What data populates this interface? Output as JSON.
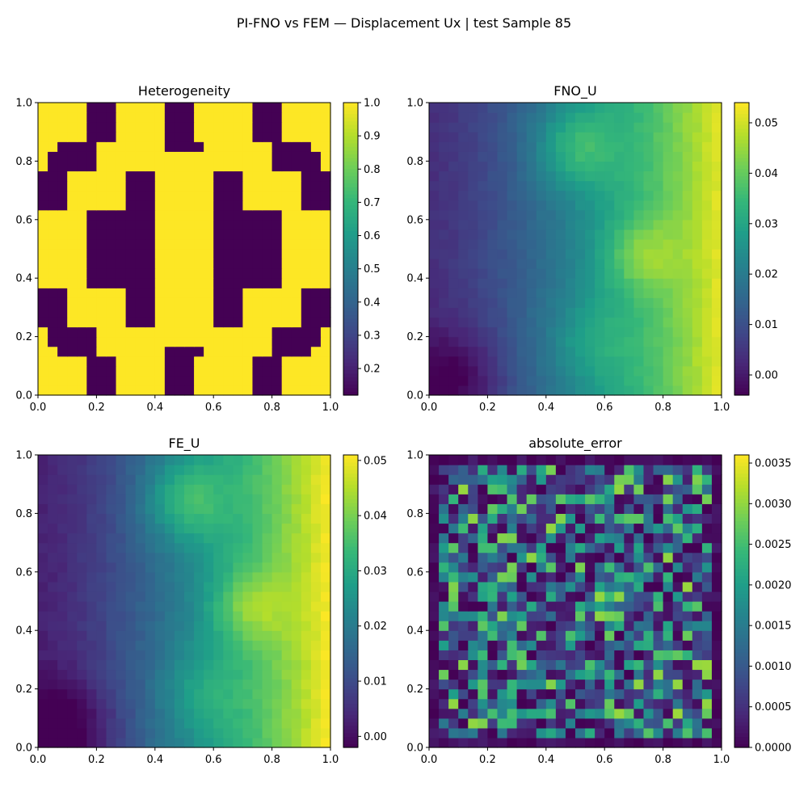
{
  "figure": {
    "title": "PI-FNO vs FEM — Displacement Ux | test Sample 85",
    "colormap": "viridis",
    "viridis_stops": [
      "#440154",
      "#482878",
      "#3e4a89",
      "#31688e",
      "#26828e",
      "#1f9e89",
      "#35b779",
      "#6ece58",
      "#b5de2b",
      "#fde725"
    ]
  },
  "chart_data": [
    {
      "type": "heatmap",
      "title": "Heterogeneity",
      "xlim": [
        0,
        1
      ],
      "ylim": [
        0,
        1
      ],
      "x_ticks": [
        "0.0",
        "0.2",
        "0.4",
        "0.6",
        "0.8",
        "1.0"
      ],
      "y_ticks": [
        "0.0",
        "0.2",
        "0.4",
        "0.6",
        "0.8",
        "1.0"
      ],
      "grid": [
        30,
        30
      ],
      "colorbar": {
        "min": 0.12,
        "max": 1.0,
        "ticks": [
          0.2,
          0.3,
          0.4,
          0.5,
          0.6,
          0.7,
          0.8,
          0.9,
          1.0
        ],
        "tick_labels": [
          "0.2",
          "0.3",
          "0.4",
          "0.5",
          "0.6",
          "0.7",
          "0.8",
          "0.9",
          "1.0"
        ]
      }
    },
    {
      "type": "heatmap",
      "title": "FNO_U",
      "xlim": [
        0,
        1
      ],
      "ylim": [
        0,
        1
      ],
      "x_ticks": [
        "0.0",
        "0.2",
        "0.4",
        "0.6",
        "0.8",
        "1.0"
      ],
      "y_ticks": [
        "0.0",
        "0.2",
        "0.4",
        "0.6",
        "0.8",
        "1.0"
      ],
      "grid": [
        30,
        30
      ],
      "colorbar": {
        "min": -0.004,
        "max": 0.054,
        "ticks": [
          0.0,
          0.01,
          0.02,
          0.03,
          0.04,
          0.05
        ],
        "tick_labels": [
          "0.00",
          "0.01",
          "0.02",
          "0.03",
          "0.04",
          "0.05"
        ]
      }
    },
    {
      "type": "heatmap",
      "title": "FE_U",
      "xlim": [
        0,
        1
      ],
      "ylim": [
        0,
        1
      ],
      "x_ticks": [
        "0.0",
        "0.2",
        "0.4",
        "0.6",
        "0.8",
        "1.0"
      ],
      "y_ticks": [
        "0.0",
        "0.2",
        "0.4",
        "0.6",
        "0.8",
        "1.0"
      ],
      "grid": [
        30,
        30
      ],
      "colorbar": {
        "min": -0.002,
        "max": 0.051,
        "ticks": [
          0.0,
          0.01,
          0.02,
          0.03,
          0.04,
          0.05
        ],
        "tick_labels": [
          "0.00",
          "0.01",
          "0.02",
          "0.03",
          "0.04",
          "0.05"
        ]
      }
    },
    {
      "type": "heatmap",
      "title": "absolute_error",
      "xlim": [
        0,
        1
      ],
      "ylim": [
        0,
        1
      ],
      "x_ticks": [
        "0.0",
        "0.2",
        "0.4",
        "0.6",
        "0.8",
        "1.0"
      ],
      "y_ticks": [
        "0.0",
        "0.2",
        "0.4",
        "0.6",
        "0.8",
        "1.0"
      ],
      "grid": [
        30,
        30
      ],
      "colorbar": {
        "min": 0.0,
        "max": 0.0036,
        "ticks": [
          0.0,
          0.0005,
          0.001,
          0.0015,
          0.002,
          0.0025,
          0.003,
          0.0035
        ],
        "tick_labels": [
          "0.0000",
          "0.0005",
          "0.0010",
          "0.0015",
          "0.0020",
          "0.0025",
          "0.0030",
          "0.0035"
        ]
      }
    }
  ]
}
